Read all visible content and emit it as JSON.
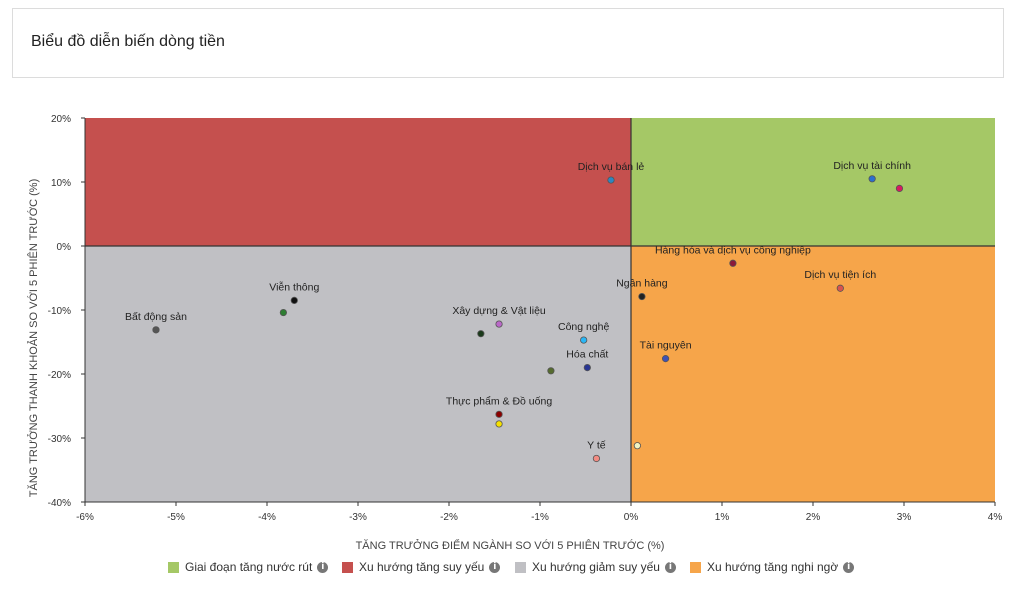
{
  "header": {
    "title": "Biểu đồ diễn biến dòng tiền"
  },
  "legend": [
    {
      "label": "Giai đoạn tăng nước rút",
      "color": "#a5c866",
      "icon": "info-icon"
    },
    {
      "label": "Xu hướng tăng suy yếu",
      "color": "#c5504e",
      "icon": "info-icon"
    },
    {
      "label": "Xu hướng giảm suy yếu",
      "color": "#c0c0c4",
      "icon": "info-icon"
    },
    {
      "label": "Xu hướng tăng nghi ngờ",
      "color": "#f6a54a",
      "icon": "info-icon"
    }
  ],
  "chart_data": {
    "type": "scatter",
    "xlabel": "TĂNG TRƯỞNG ĐIỂM NGÀNH SO VỚI 5 PHIÊN TRƯỚC (%)",
    "ylabel": "TĂNG TRƯỞNG THANH KHOẢN SO VỚI 5 PHIÊN TRƯỚC (%)",
    "xlim": [
      -6,
      4
    ],
    "ylim": [
      -40,
      20
    ],
    "xticks": [
      "-6%",
      "-5%",
      "-4%",
      "-3%",
      "-2%",
      "-1%",
      "0%",
      "1%",
      "2%",
      "3%",
      "4%"
    ],
    "yticks": [
      "20%",
      "10%",
      "0%",
      "-10%",
      "-20%",
      "-30%",
      "-40%"
    ],
    "quadrants": [
      {
        "name": "Giai đoạn tăng nước rút",
        "x": [
          0,
          4
        ],
        "y": [
          0,
          20
        ],
        "color": "#a5c866"
      },
      {
        "name": "Xu hướng tăng suy yếu",
        "x": [
          -6,
          0
        ],
        "y": [
          0,
          20
        ],
        "color": "#c5504e"
      },
      {
        "name": "Xu hướng giảm suy yếu",
        "x": [
          -6,
          0
        ],
        "y": [
          -40,
          0
        ],
        "color": "#c0c0c4"
      },
      {
        "name": "Xu hướng tăng nghi ngờ",
        "x": [
          0,
          4
        ],
        "y": [
          -40,
          0
        ],
        "color": "#f6a54a"
      }
    ],
    "points": [
      {
        "label": "Dịch vụ bán lẻ",
        "x": -0.22,
        "y": 10.3,
        "color": "#2e86c1"
      },
      {
        "label": "Dịch vụ tài chính",
        "x": 2.65,
        "y": 10.5,
        "color": "#2a6fcf"
      },
      {
        "label": "",
        "x": 2.95,
        "y": 9.0,
        "color": "#d81b60"
      },
      {
        "label": "Hàng hóa và dịch vụ công nghiệp",
        "x": 1.12,
        "y": -2.7,
        "color": "#8b1a3a"
      },
      {
        "label": "Dịch vụ tiện ích",
        "x": 2.3,
        "y": -6.6,
        "color": "#d9534f"
      },
      {
        "label": "Ngân hàng",
        "x": 0.12,
        "y": -7.9,
        "color": "#222222"
      },
      {
        "label": "Tài nguyên",
        "x": 0.38,
        "y": -17.6,
        "color": "#3f51b5"
      },
      {
        "label": "Công nghệ",
        "x": -0.52,
        "y": -14.7,
        "color": "#29b6f6"
      },
      {
        "label": "Hóa chất",
        "x": -0.48,
        "y": -19.0,
        "color": "#283593"
      },
      {
        "label": "",
        "x": -0.88,
        "y": -19.5,
        "color": "#556b2f"
      },
      {
        "label": "Xây dựng & Vật liệu",
        "x": -1.45,
        "y": -12.2,
        "color": "#ba68c8"
      },
      {
        "label": "",
        "x": -1.65,
        "y": -13.7,
        "color": "#1b3a1b"
      },
      {
        "label": "Viễn thông",
        "x": -3.7,
        "y": -8.5,
        "color": "#111111"
      },
      {
        "label": "",
        "x": -3.82,
        "y": -10.4,
        "color": "#2e7d32"
      },
      {
        "label": "Bất động sản",
        "x": -5.22,
        "y": -13.1,
        "color": "#555555"
      },
      {
        "label": "Thực phẩm & Đồ uống",
        "x": -1.45,
        "y": -26.3,
        "color": "#8b0000"
      },
      {
        "label": "",
        "x": -1.45,
        "y": -27.8,
        "color": "#f5e000"
      },
      {
        "label": "Y tế",
        "x": -0.38,
        "y": -33.2,
        "color": "#f28b82"
      },
      {
        "label": "",
        "x": 0.07,
        "y": -31.2,
        "color": "#f0f4c3"
      }
    ],
    "grid": false,
    "legend_position": "bottom"
  }
}
